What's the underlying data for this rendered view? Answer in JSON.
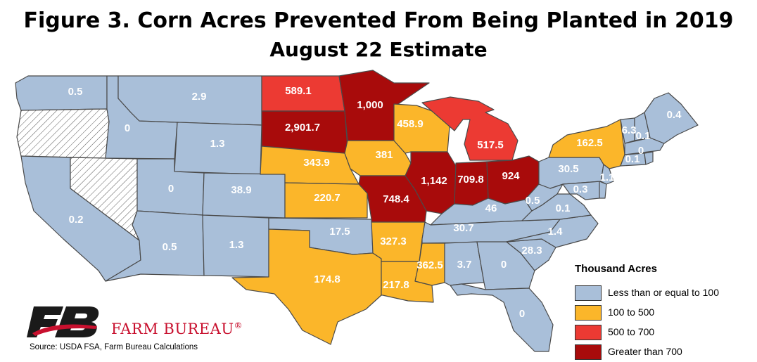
{
  "title_line1": "Figure 3. Corn Acres Prevented From Being Planted in 2019",
  "title_line2": "August 22 Estimate",
  "colors": {
    "low": "#a9bfd9",
    "mid": "#fbb62a",
    "high": "#ec3a33",
    "top": "#a80b0b",
    "nodata": "#ffffff"
  },
  "states": [
    {
      "name": "Washington",
      "value": "0.5",
      "cat": "low"
    },
    {
      "name": "Oregon",
      "value": "",
      "cat": "nodata"
    },
    {
      "name": "California",
      "value": "0.2",
      "cat": "low"
    },
    {
      "name": "Nevada",
      "value": "",
      "cat": "nodata"
    },
    {
      "name": "Idaho",
      "value": "0",
      "cat": "low"
    },
    {
      "name": "Montana",
      "value": "2.9",
      "cat": "low"
    },
    {
      "name": "Wyoming",
      "value": "1.3",
      "cat": "low"
    },
    {
      "name": "Utah",
      "value": "0",
      "cat": "low"
    },
    {
      "name": "Arizona",
      "value": "0.5",
      "cat": "low"
    },
    {
      "name": "Colorado",
      "value": "38.9",
      "cat": "low"
    },
    {
      "name": "New Mexico",
      "value": "1.3",
      "cat": "low"
    },
    {
      "name": "North Dakota",
      "value": "589.1",
      "cat": "high"
    },
    {
      "name": "South Dakota",
      "value": "2,901.7",
      "cat": "top"
    },
    {
      "name": "Nebraska",
      "value": "343.9",
      "cat": "mid"
    },
    {
      "name": "Kansas",
      "value": "220.7",
      "cat": "mid"
    },
    {
      "name": "Oklahoma",
      "value": "17.5",
      "cat": "low"
    },
    {
      "name": "Texas",
      "value": "174.8",
      "cat": "mid"
    },
    {
      "name": "Minnesota",
      "value": "1,000",
      "cat": "top"
    },
    {
      "name": "Iowa",
      "value": "381",
      "cat": "mid"
    },
    {
      "name": "Missouri",
      "value": "748.4",
      "cat": "top"
    },
    {
      "name": "Arkansas",
      "value": "327.3",
      "cat": "mid"
    },
    {
      "name": "Louisiana",
      "value": "217.8",
      "cat": "mid"
    },
    {
      "name": "Wisconsin",
      "value": "458.9",
      "cat": "mid"
    },
    {
      "name": "Illinois",
      "value": "1,142",
      "cat": "top"
    },
    {
      "name": "Michigan",
      "value": "517.5",
      "cat": "high"
    },
    {
      "name": "Indiana",
      "value": "709.8",
      "cat": "top"
    },
    {
      "name": "Ohio",
      "value": "924",
      "cat": "top"
    },
    {
      "name": "Kentucky",
      "value": "46",
      "cat": "low"
    },
    {
      "name": "Tennessee",
      "value": "30.7",
      "cat": "low"
    },
    {
      "name": "Mississippi",
      "value": "362.5",
      "cat": "mid"
    },
    {
      "name": "Alabama",
      "value": "3.7",
      "cat": "low"
    },
    {
      "name": "Georgia",
      "value": "0",
      "cat": "low"
    },
    {
      "name": "Florida",
      "value": "0",
      "cat": "low"
    },
    {
      "name": "South Carolina",
      "value": "28.3",
      "cat": "low"
    },
    {
      "name": "North Carolina",
      "value": "1.4",
      "cat": "low"
    },
    {
      "name": "Virginia",
      "value": "0.1",
      "cat": "low"
    },
    {
      "name": "West Virginia",
      "value": "0.5",
      "cat": "low"
    },
    {
      "name": "Pennsylvania",
      "value": "30.5",
      "cat": "low"
    },
    {
      "name": "New York",
      "value": "162.5",
      "cat": "mid"
    },
    {
      "name": "Maryland",
      "value": "0.3",
      "cat": "low"
    },
    {
      "name": "Delaware",
      "value": "",
      "cat": "low"
    },
    {
      "name": "New Jersey",
      "value": "1.1",
      "cat": "low"
    },
    {
      "name": "Vermont",
      "value": "6.3",
      "cat": "low"
    },
    {
      "name": "New Hampshire",
      "value": "0.1",
      "cat": "low"
    },
    {
      "name": "Massachusetts",
      "value": "0",
      "cat": "low"
    },
    {
      "name": "Connecticut",
      "value": "0.1",
      "cat": "low"
    },
    {
      "name": "Rhode Island",
      "value": "",
      "cat": "low"
    },
    {
      "name": "Maine",
      "value": "0.4",
      "cat": "low"
    }
  ],
  "legend": {
    "title": "Thousand Acres",
    "items": [
      {
        "label": "Less than or equal to 100",
        "cat": "low"
      },
      {
        "label": "100 to 500",
        "cat": "mid"
      },
      {
        "label": "500 to 700",
        "cat": "high"
      },
      {
        "label": "Greater than 700",
        "cat": "top"
      }
    ]
  },
  "brand": "FARM BUREAU",
  "brand_mark": "®",
  "logo_text": "FB",
  "source": "Source: USDA FSA, Farm Bureau Calculations"
}
